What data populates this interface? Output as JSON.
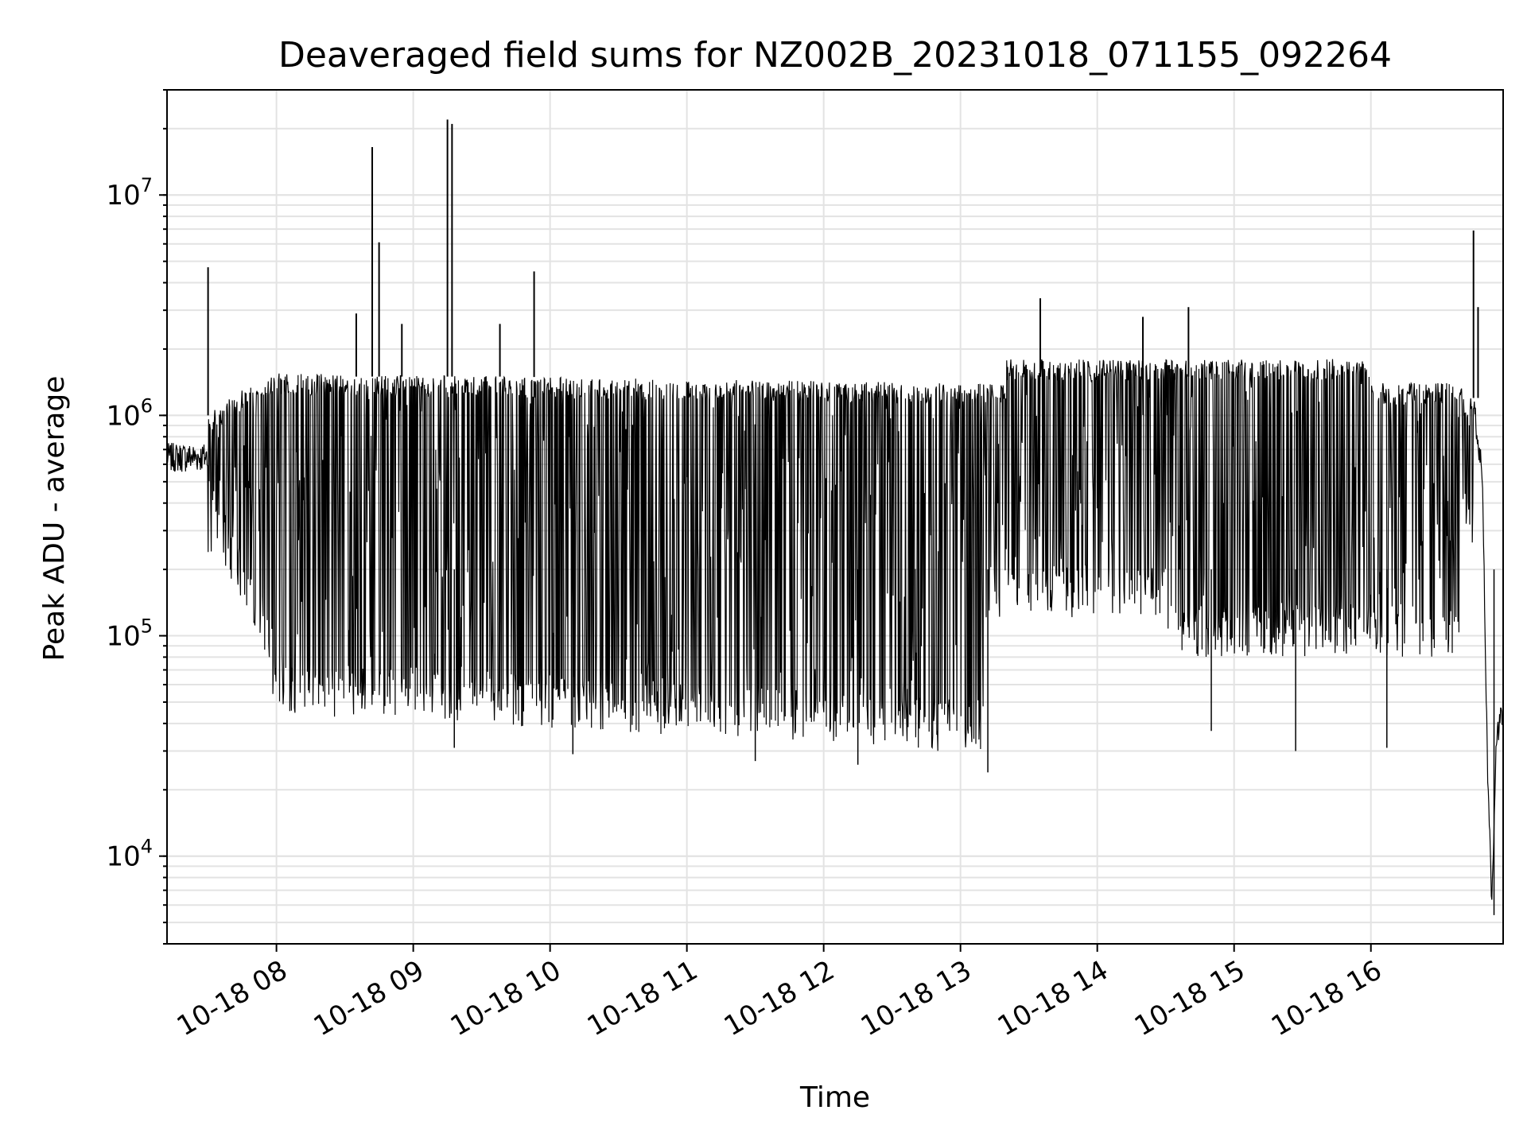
{
  "chart_data": {
    "type": "line",
    "title": "Deaveraged field sums for NZ002B_20231018_071155_092264",
    "xlabel": "Time",
    "ylabel": "Peak ADU - average",
    "yscale": "log",
    "ylim": [
      4000,
      30000000
    ],
    "xlim": [
      "2023-10-18 07:12",
      "2023-10-18 16:58"
    ],
    "grid": true,
    "x_tick_labels": [
      "10-18 08",
      "10-18 09",
      "10-18 10",
      "10-18 11",
      "10-18 12",
      "10-18 13",
      "10-18 14",
      "10-18 15",
      "10-18 16"
    ],
    "x_tick_times": [
      "2023-10-18 08:00",
      "2023-10-18 09:00",
      "2023-10-18 10:00",
      "2023-10-18 11:00",
      "2023-10-18 12:00",
      "2023-10-18 13:00",
      "2023-10-18 14:00",
      "2023-10-18 15:00",
      "2023-10-18 16:00"
    ],
    "y_tick_values": [
      10000,
      100000,
      1000000,
      10000000
    ],
    "y_tick_labels": [
      {
        "base": "10",
        "exp": "4"
      },
      {
        "base": "10",
        "exp": "5"
      },
      {
        "base": "10",
        "exp": "6"
      },
      {
        "base": "10",
        "exp": "7"
      }
    ],
    "series": [
      {
        "color": "#000000",
        "points": [
          [
            "2023-10-18 07:12",
            600000
          ],
          [
            "2023-10-18 07:20",
            680000
          ],
          [
            "2023-10-18 07:27",
            1050000
          ],
          [
            "2023-10-18 07:30",
            700000
          ],
          [
            "2023-10-18 07:33",
            400000
          ],
          [
            "2023-10-18 07:37",
            260000
          ],
          [
            "2023-10-18 07:42",
            180000
          ],
          [
            "2023-10-18 07:48",
            120000
          ],
          [
            "2023-10-18 07:55",
            60000
          ],
          [
            "2023-10-18 08:10",
            1500000
          ],
          [
            "2023-10-18 08:20",
            50000
          ],
          [
            "2023-10-18 08:40",
            1550000
          ],
          [
            "2023-10-18 09:00",
            50000
          ],
          [
            "2023-10-18 09:30",
            1500000
          ],
          [
            "2023-10-18 10:00",
            40000
          ],
          [
            "2023-10-18 10:30",
            1500000
          ],
          [
            "2023-10-18 11:00",
            40000
          ],
          [
            "2023-10-18 11:30",
            1400000
          ],
          [
            "2023-10-18 12:00",
            35000
          ],
          [
            "2023-10-18 12:30",
            1350000
          ],
          [
            "2023-10-18 13:00",
            40000
          ],
          [
            "2023-10-18 13:30",
            1500000
          ],
          [
            "2023-10-18 14:00",
            120000
          ],
          [
            "2023-10-18 14:30",
            1400000
          ],
          [
            "2023-10-18 15:00",
            80000
          ],
          [
            "2023-10-18 15:30",
            1300000
          ],
          [
            "2023-10-18 16:00",
            150000
          ],
          [
            "2023-10-18 16:30",
            1000000
          ],
          [
            "2023-10-18 16:45",
            1200000
          ],
          [
            "2023-10-18 16:49",
            500000
          ],
          [
            "2023-10-18 16:51",
            30000
          ],
          [
            "2023-10-18 16:53",
            6000
          ],
          [
            "2023-10-18 16:55",
            35000
          ],
          [
            "2023-10-18 16:58",
            45000
          ]
        ],
        "spikes": [
          [
            "2023-10-18 07:30",
            4700000
          ],
          [
            "2023-10-18 08:35",
            2900000
          ],
          [
            "2023-10-18 08:42",
            16500000
          ],
          [
            "2023-10-18 08:45",
            6100000
          ],
          [
            "2023-10-18 08:55",
            2600000
          ],
          [
            "2023-10-18 09:15",
            22000000
          ],
          [
            "2023-10-18 09:17",
            21000000
          ],
          [
            "2023-10-18 09:38",
            2600000
          ],
          [
            "2023-10-18 09:53",
            4500000
          ],
          [
            "2023-10-18 13:35",
            3400000
          ],
          [
            "2023-10-18 14:20",
            2800000
          ],
          [
            "2023-10-18 14:40",
            3100000
          ],
          [
            "2023-10-18 16:45",
            6900000
          ],
          [
            "2023-10-18 16:47",
            3100000
          ]
        ],
        "dips": [
          [
            "2023-10-18 09:18",
            31000
          ],
          [
            "2023-10-18 10:10",
            29000
          ],
          [
            "2023-10-18 11:30",
            27000
          ],
          [
            "2023-10-18 12:15",
            26000
          ],
          [
            "2023-10-18 13:12",
            24000
          ],
          [
            "2023-10-18 14:50",
            37000
          ],
          [
            "2023-10-18 15:27",
            30000
          ],
          [
            "2023-10-18 16:07",
            31000
          ],
          [
            "2023-10-18 16:54",
            5400
          ]
        ]
      }
    ]
  }
}
